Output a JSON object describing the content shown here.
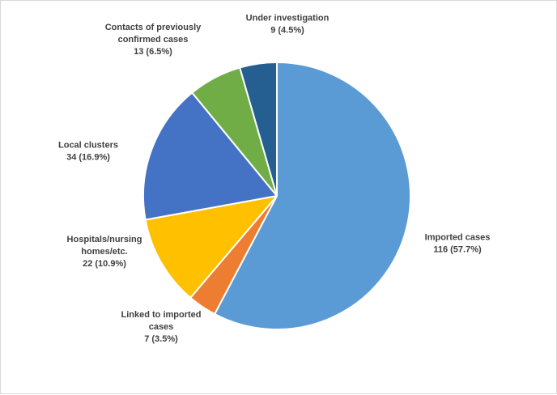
{
  "chart_data": {
    "type": "pie",
    "title": "",
    "start_angle_deg": 0,
    "direction": "clockwise",
    "slices": [
      {
        "label": [
          "Imported cases"
        ],
        "value": 116,
        "pct": "57.7%",
        "value_label": "116 (57.7%)",
        "color": "#5B9BD5"
      },
      {
        "label": [
          "Linked to imported",
          "cases"
        ],
        "value": 7,
        "pct": "3.5%",
        "value_label": "7 (3.5%)",
        "color": "#ED7D31"
      },
      {
        "label": [
          "Hospitals/nursing",
          "homes/etc."
        ],
        "value": 22,
        "pct": "10.9%",
        "value_label": "22 (10.9%)",
        "color": "#FFC000"
      },
      {
        "label": [
          "Local clusters"
        ],
        "value": 34,
        "pct": "16.9%",
        "value_label": "34 (16.9%)",
        "color": "#4472C4"
      },
      {
        "label": [
          "Contacts of previously",
          "confirmed cases"
        ],
        "value": 13,
        "pct": "6.5%",
        "value_label": "13 (6.5%)",
        "color": "#70AD47"
      },
      {
        "label": [
          "Under investigation"
        ],
        "value": 9,
        "pct": "4.5%",
        "value_label": "9 (4.5%)",
        "color": "#255E91"
      }
    ]
  }
}
